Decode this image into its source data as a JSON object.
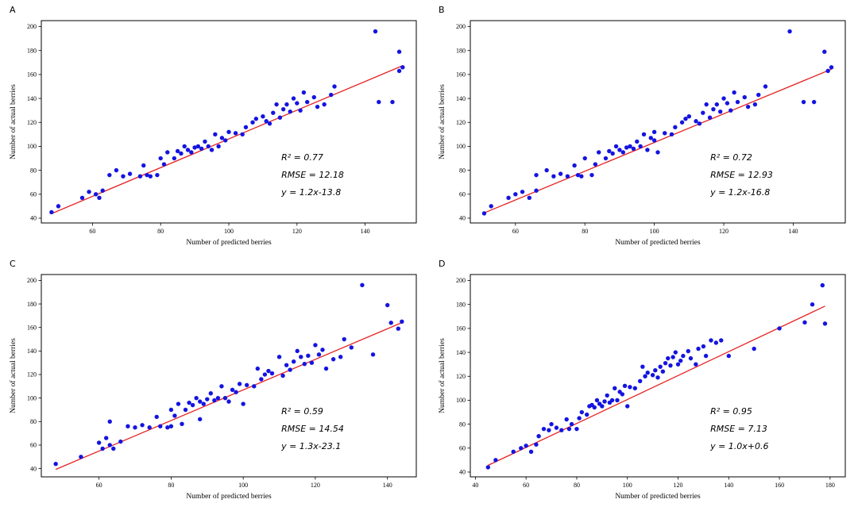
{
  "colors": {
    "point": "#1414e0",
    "line": "#e62222",
    "axis": "#000000"
  },
  "chart_data": [
    {
      "type": "scatter",
      "panel": "A",
      "xlabel": "Number of predicted berries",
      "ylabel": "Number of actual berries",
      "xlim": [
        45,
        155
      ],
      "ylim": [
        36,
        205
      ],
      "xticks": [
        60,
        80,
        100,
        120,
        140
      ],
      "yticks": [
        40,
        60,
        80,
        100,
        120,
        140,
        160,
        180,
        200
      ],
      "fit": {
        "slope": 1.2,
        "intercept": -13.8,
        "x_start": 48,
        "x_end": 151
      },
      "annotation": {
        "r2": "R² = 0.77",
        "rmse": "RMSE = 12.18",
        "equation": "y = 1.2x-13.8"
      },
      "points": [
        [
          48,
          45
        ],
        [
          50,
          50
        ],
        [
          57,
          57
        ],
        [
          59,
          62
        ],
        [
          61,
          60
        ],
        [
          62,
          57
        ],
        [
          63,
          63
        ],
        [
          65,
          76
        ],
        [
          67,
          80
        ],
        [
          69,
          75
        ],
        [
          71,
          77
        ],
        [
          74,
          75
        ],
        [
          75,
          84
        ],
        [
          76,
          76
        ],
        [
          77,
          75
        ],
        [
          79,
          76
        ],
        [
          80,
          90
        ],
        [
          81,
          85
        ],
        [
          82,
          95
        ],
        [
          84,
          90
        ],
        [
          85,
          96
        ],
        [
          86,
          94
        ],
        [
          87,
          100
        ],
        [
          88,
          97
        ],
        [
          89,
          95
        ],
        [
          90,
          99
        ],
        [
          91,
          100
        ],
        [
          92,
          98
        ],
        [
          93,
          104
        ],
        [
          94,
          100
        ],
        [
          95,
          97
        ],
        [
          96,
          110
        ],
        [
          97,
          100
        ],
        [
          98,
          107
        ],
        [
          99,
          105
        ],
        [
          100,
          112
        ],
        [
          102,
          111
        ],
        [
          104,
          110
        ],
        [
          105,
          116
        ],
        [
          107,
          120
        ],
        [
          108,
          123
        ],
        [
          110,
          125
        ],
        [
          111,
          121
        ],
        [
          112,
          119
        ],
        [
          113,
          128
        ],
        [
          114,
          135
        ],
        [
          115,
          124
        ],
        [
          116,
          131
        ],
        [
          117,
          135
        ],
        [
          118,
          129
        ],
        [
          119,
          140
        ],
        [
          120,
          136
        ],
        [
          121,
          130
        ],
        [
          122,
          145
        ],
        [
          123,
          137
        ],
        [
          125,
          141
        ],
        [
          126,
          133
        ],
        [
          128,
          135
        ],
        [
          130,
          143
        ],
        [
          131,
          150
        ],
        [
          143,
          196
        ],
        [
          144,
          137
        ],
        [
          148,
          137
        ],
        [
          150,
          179
        ],
        [
          150,
          163
        ],
        [
          151,
          166
        ]
      ]
    },
    {
      "type": "scatter",
      "panel": "B",
      "xlabel": "Number of predicted berries",
      "ylabel": "Number of actual berries",
      "xlim": [
        47,
        155
      ],
      "ylim": [
        36,
        205
      ],
      "xticks": [
        60,
        80,
        100,
        120,
        140
      ],
      "yticks": [
        40,
        60,
        80,
        100,
        120,
        140,
        160,
        180,
        200
      ],
      "fit": {
        "slope": 1.2,
        "intercept": -16.8,
        "x_start": 51,
        "x_end": 151
      },
      "annotation": {
        "r2": "R² = 0.72",
        "rmse": "RMSE = 12.93",
        "equation": "y = 1.2x-16.8"
      },
      "points": [
        [
          51,
          44
        ],
        [
          53,
          50
        ],
        [
          58,
          57
        ],
        [
          60,
          60
        ],
        [
          62,
          62
        ],
        [
          64,
          57
        ],
        [
          66,
          63
        ],
        [
          66,
          76
        ],
        [
          69,
          80
        ],
        [
          71,
          75
        ],
        [
          73,
          77
        ],
        [
          75,
          75
        ],
        [
          77,
          84
        ],
        [
          78,
          76
        ],
        [
          79,
          75
        ],
        [
          80,
          90
        ],
        [
          82,
          76
        ],
        [
          83,
          85
        ],
        [
          84,
          95
        ],
        [
          86,
          90
        ],
        [
          87,
          96
        ],
        [
          88,
          94
        ],
        [
          89,
          100
        ],
        [
          90,
          97
        ],
        [
          91,
          95
        ],
        [
          92,
          99
        ],
        [
          93,
          100
        ],
        [
          94,
          98
        ],
        [
          95,
          104
        ],
        [
          96,
          100
        ],
        [
          97,
          110
        ],
        [
          98,
          97
        ],
        [
          99,
          107
        ],
        [
          100,
          105
        ],
        [
          100,
          112
        ],
        [
          101,
          95
        ],
        [
          103,
          111
        ],
        [
          105,
          110
        ],
        [
          106,
          116
        ],
        [
          108,
          120
        ],
        [
          109,
          123
        ],
        [
          110,
          125
        ],
        [
          112,
          121
        ],
        [
          113,
          119
        ],
        [
          114,
          128
        ],
        [
          115,
          135
        ],
        [
          116,
          124
        ],
        [
          117,
          131
        ],
        [
          118,
          135
        ],
        [
          119,
          129
        ],
        [
          120,
          140
        ],
        [
          121,
          136
        ],
        [
          122,
          130
        ],
        [
          123,
          145
        ],
        [
          124,
          137
        ],
        [
          126,
          141
        ],
        [
          127,
          133
        ],
        [
          129,
          135
        ],
        [
          130,
          143
        ],
        [
          132,
          150
        ],
        [
          139,
          196
        ],
        [
          143,
          137
        ],
        [
          146,
          137
        ],
        [
          149,
          179
        ],
        [
          150,
          163
        ],
        [
          151,
          166
        ]
      ]
    },
    {
      "type": "scatter",
      "panel": "C",
      "xlabel": "Number of predicted berries",
      "ylabel": "Number of actual berries",
      "xlim": [
        44,
        148
      ],
      "ylim": [
        33,
        205
      ],
      "xticks": [
        60,
        80,
        100,
        120,
        140
      ],
      "yticks": [
        40,
        60,
        80,
        100,
        120,
        140,
        160,
        180,
        200
      ],
      "fit": {
        "slope": 1.3,
        "intercept": -23.1,
        "x_start": 48,
        "x_end": 144
      },
      "annotation": {
        "r2": "R² = 0.59",
        "rmse": "RMSE = 14.54",
        "equation": "y = 1.3x-23.1"
      },
      "points": [
        [
          48,
          44
        ],
        [
          55,
          50
        ],
        [
          60,
          62
        ],
        [
          61,
          57
        ],
        [
          62,
          66
        ],
        [
          63,
          60
        ],
        [
          64,
          57
        ],
        [
          63,
          80
        ],
        [
          66,
          63
        ],
        [
          68,
          76
        ],
        [
          70,
          75
        ],
        [
          72,
          77
        ],
        [
          74,
          75
        ],
        [
          76,
          84
        ],
        [
          77,
          76
        ],
        [
          79,
          75
        ],
        [
          80,
          90
        ],
        [
          80,
          76
        ],
        [
          81,
          85
        ],
        [
          82,
          95
        ],
        [
          83,
          78
        ],
        [
          84,
          90
        ],
        [
          85,
          96
        ],
        [
          86,
          94
        ],
        [
          87,
          100
        ],
        [
          88,
          97
        ],
        [
          88,
          82
        ],
        [
          89,
          95
        ],
        [
          90,
          99
        ],
        [
          91,
          104
        ],
        [
          92,
          98
        ],
        [
          93,
          100
        ],
        [
          94,
          110
        ],
        [
          95,
          100
        ],
        [
          96,
          97
        ],
        [
          97,
          107
        ],
        [
          98,
          105
        ],
        [
          99,
          112
        ],
        [
          100,
          95
        ],
        [
          101,
          111
        ],
        [
          103,
          110
        ],
        [
          104,
          125
        ],
        [
          105,
          116
        ],
        [
          106,
          120
        ],
        [
          107,
          123
        ],
        [
          108,
          121
        ],
        [
          110,
          135
        ],
        [
          111,
          119
        ],
        [
          112,
          128
        ],
        [
          113,
          124
        ],
        [
          114,
          131
        ],
        [
          115,
          140
        ],
        [
          116,
          135
        ],
        [
          117,
          129
        ],
        [
          118,
          136
        ],
        [
          119,
          130
        ],
        [
          120,
          145
        ],
        [
          121,
          137
        ],
        [
          122,
          141
        ],
        [
          123,
          125
        ],
        [
          125,
          133
        ],
        [
          127,
          135
        ],
        [
          128,
          150
        ],
        [
          130,
          143
        ],
        [
          133,
          196
        ],
        [
          136,
          137
        ],
        [
          140,
          179
        ],
        [
          141,
          164
        ],
        [
          143,
          159
        ],
        [
          144,
          165
        ]
      ]
    },
    {
      "type": "scatter",
      "panel": "D",
      "xlabel": "Number of predicted berries",
      "ylabel": "Number of actual berries",
      "xlim": [
        38,
        186
      ],
      "ylim": [
        36,
        205
      ],
      "xticks": [
        40,
        60,
        80,
        100,
        120,
        140,
        160,
        180
      ],
      "yticks": [
        40,
        60,
        80,
        100,
        120,
        140,
        160,
        180,
        200
      ],
      "fit": {
        "slope": 1.0,
        "intercept": 0.6,
        "x_start": 45,
        "x_end": 178
      },
      "annotation": {
        "r2": "R² = 0.95",
        "rmse": "RMSE = 7.13",
        "equation": "y = 1.0x+0.6"
      },
      "points": [
        [
          45,
          44
        ],
        [
          48,
          50
        ],
        [
          55,
          57
        ],
        [
          58,
          60
        ],
        [
          60,
          62
        ],
        [
          62,
          57
        ],
        [
          64,
          63
        ],
        [
          65,
          70
        ],
        [
          67,
          76
        ],
        [
          69,
          75
        ],
        [
          70,
          80
        ],
        [
          72,
          77
        ],
        [
          74,
          75
        ],
        [
          76,
          84
        ],
        [
          77,
          76
        ],
        [
          78,
          80
        ],
        [
          80,
          76
        ],
        [
          81,
          85
        ],
        [
          82,
          90
        ],
        [
          84,
          88
        ],
        [
          85,
          95
        ],
        [
          86,
          96
        ],
        [
          87,
          94
        ],
        [
          88,
          100
        ],
        [
          89,
          97
        ],
        [
          90,
          95
        ],
        [
          91,
          99
        ],
        [
          92,
          104
        ],
        [
          93,
          98
        ],
        [
          94,
          100
        ],
        [
          95,
          110
        ],
        [
          96,
          100
        ],
        [
          97,
          107
        ],
        [
          98,
          105
        ],
        [
          99,
          112
        ],
        [
          100,
          95
        ],
        [
          101,
          111
        ],
        [
          103,
          110
        ],
        [
          105,
          116
        ],
        [
          106,
          128
        ],
        [
          107,
          120
        ],
        [
          108,
          123
        ],
        [
          110,
          121
        ],
        [
          111,
          125
        ],
        [
          112,
          119
        ],
        [
          113,
          128
        ],
        [
          114,
          124
        ],
        [
          115,
          131
        ],
        [
          116,
          135
        ],
        [
          117,
          129
        ],
        [
          118,
          136
        ],
        [
          119,
          140
        ],
        [
          120,
          130
        ],
        [
          121,
          133
        ],
        [
          122,
          137
        ],
        [
          124,
          141
        ],
        [
          125,
          135
        ],
        [
          127,
          130
        ],
        [
          128,
          143
        ],
        [
          130,
          145
        ],
        [
          131,
          137
        ],
        [
          133,
          150
        ],
        [
          135,
          148
        ],
        [
          137,
          150
        ],
        [
          140,
          137
        ],
        [
          150,
          143
        ],
        [
          160,
          160
        ],
        [
          170,
          165
        ],
        [
          173,
          180
        ],
        [
          177,
          196
        ],
        [
          178,
          164
        ]
      ]
    }
  ]
}
